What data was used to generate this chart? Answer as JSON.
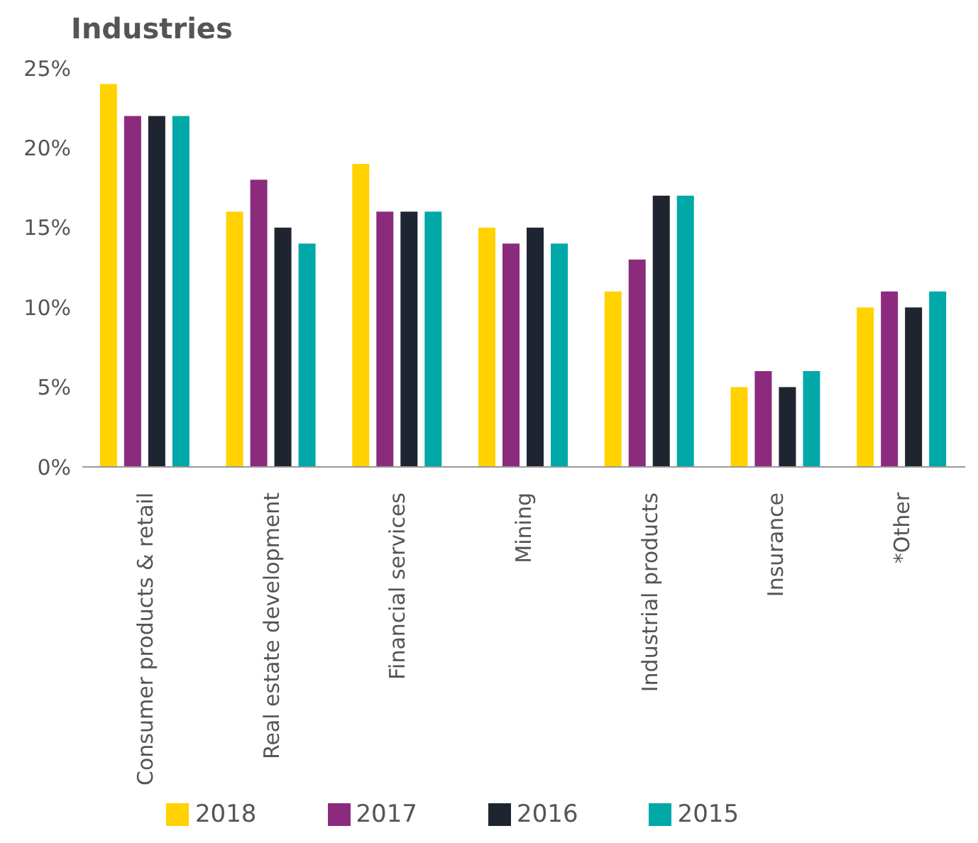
{
  "chart_data": {
    "type": "bar",
    "title": "Industries",
    "categories": [
      "Consumer products & retail",
      "Real estate development",
      "Financial services",
      "Mining",
      "Industrial products",
      "Insurance",
      "*Other"
    ],
    "series": [
      {
        "name": "2018",
        "color": "#ffd200",
        "values": [
          24,
          16,
          19,
          15,
          11,
          5,
          10
        ]
      },
      {
        "name": "2017",
        "color": "#8c2b7d",
        "values": [
          22,
          18,
          16,
          14,
          13,
          6,
          11
        ]
      },
      {
        "name": "2016",
        "color": "#1f2530",
        "values": [
          22,
          15,
          16,
          15,
          17,
          5,
          10
        ]
      },
      {
        "name": "2015",
        "color": "#00a8a8",
        "values": [
          22,
          14,
          16,
          14,
          17,
          6,
          11
        ]
      }
    ],
    "ylim": [
      0,
      25
    ],
    "yticks": [
      {
        "value": 0,
        "label": "0%"
      },
      {
        "value": 5,
        "label": "5%"
      },
      {
        "value": 10,
        "label": "10%"
      },
      {
        "value": 15,
        "label": "15%"
      },
      {
        "value": 20,
        "label": "20%"
      },
      {
        "value": 25,
        "label": "25%"
      }
    ],
    "grid": false,
    "legend": "bottom"
  }
}
